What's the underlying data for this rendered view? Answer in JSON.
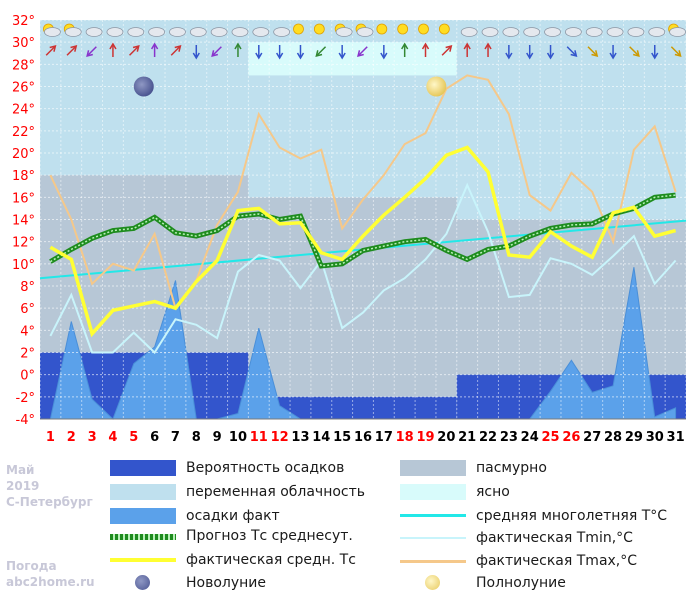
{
  "chart_data": {
    "type": "line",
    "month": "Май",
    "year": "2019",
    "city": "С-Петербург",
    "credit_line1": "Погода",
    "credit_line2": "abc2home.ru",
    "y_ticks": [
      "32°",
      "30°",
      "28°",
      "26°",
      "24°",
      "22°",
      "20°",
      "18°",
      "16°",
      "14°",
      "12°",
      "10°",
      "8°",
      "6°",
      "4°",
      "2°",
      "0°",
      "-2°",
      "-4°"
    ],
    "ylim": [
      -4,
      32
    ],
    "x": [
      1,
      2,
      3,
      4,
      5,
      6,
      7,
      8,
      9,
      10,
      11,
      12,
      13,
      14,
      15,
      16,
      17,
      18,
      19,
      20,
      21,
      22,
      23,
      24,
      25,
      26,
      27,
      28,
      29,
      30,
      31
    ],
    "x_labels": [
      "1",
      "2",
      "3",
      "4",
      "5",
      "6",
      "7",
      "8",
      "9",
      "10",
      "11",
      "12",
      "13",
      "14",
      "15",
      "16",
      "17",
      "18",
      "19",
      "20",
      "21",
      "22",
      "23",
      "24",
      "25",
      "26",
      "27",
      "28",
      "29",
      "30",
      "31"
    ],
    "weekend_days": [
      1,
      2,
      3,
      4,
      5,
      11,
      12,
      18,
      19,
      25,
      26
    ],
    "colors": {
      "weekend": "#ff0000",
      "weekday": "#000000",
      "precip_prob": "#3355cc",
      "variable_cloud": "#bfe0ee",
      "overcast": "#b7c7d6",
      "clear": "#d8fbfb",
      "precip_fact": "#5ba1ea",
      "forecast": "#1e8c1e",
      "fact_mean": "#ffff33",
      "norm": "#22e8e8",
      "tmin": "#c8f4fb",
      "tmax": "#f5c88a"
    },
    "cloud_segments": [
      {
        "from": 0.5,
        "to": 10.5,
        "type": "variable",
        "top": 30
      },
      {
        "from": 10.5,
        "to": 20.5,
        "type": "clear",
        "top": 30
      },
      {
        "from": 10.5,
        "to": 20.5,
        "type": "variable",
        "top": 27
      },
      {
        "from": 20.5,
        "to": 31.5,
        "type": "variable",
        "top": 30
      },
      {
        "from": 0.5,
        "to": 10.5,
        "type": "overcast",
        "top": 18
      },
      {
        "from": 10.5,
        "to": 20.5,
        "type": "overcast",
        "top": 16
      },
      {
        "from": 20.5,
        "to": 31.5,
        "type": "overcast",
        "top": 14
      }
    ],
    "precip_prob_blocks": [
      {
        "from": 0.5,
        "to": 10.5,
        "top": 2
      },
      {
        "from": 10.5,
        "to": 20.5,
        "top": -2
      },
      {
        "from": 20.5,
        "to": 31.5,
        "top": 0
      }
    ],
    "precip_fact": [
      -4,
      4.8,
      -2.2,
      -4,
      1,
      2.5,
      8.5,
      -4,
      -4,
      -3.5,
      4.2,
      -2.8,
      -4,
      -4,
      -4,
      -4,
      -4,
      -4,
      -4,
      -4,
      -4,
      -4,
      -4,
      -4,
      -1.5,
      1.3,
      -1.6,
      -1,
      9.7,
      -3.8,
      -3
    ],
    "forecast_mean": [
      10.2,
      11.3,
      12.3,
      13,
      13.2,
      14.2,
      12.8,
      12.5,
      13,
      14.3,
      14.5,
      14,
      14.3,
      9.8,
      10,
      11.2,
      11.6,
      12,
      12.2,
      11.2,
      10.4,
      11.3,
      11.6,
      12.5,
      13.2,
      13.5,
      13.6,
      14.5,
      15,
      16,
      16.2
    ],
    "fact_mean": [
      11.5,
      10.4,
      3.7,
      5.8,
      6.2,
      6.6,
      6,
      8.4,
      10.3,
      14.8,
      15,
      13.6,
      13.7,
      11,
      10.4,
      12.5,
      14.4,
      16,
      17.7,
      19.8,
      20.5,
      18.3,
      10.8,
      10.6,
      12.9,
      11.6,
      10.6,
      14.6,
      15.1,
      12.5,
      13
    ],
    "tmin": [
      3.5,
      7.2,
      2,
      2,
      3.8,
      2,
      5,
      4.5,
      3.3,
      9.3,
      10.8,
      10.3,
      7.8,
      10.3,
      4.2,
      5.6,
      7.6,
      8.7,
      10.4,
      12.7,
      17.1,
      12.9,
      7,
      7.2,
      10.5,
      10,
      9,
      10.7,
      12.5,
      8.2,
      10.3
    ],
    "tmax": [
      18,
      14,
      8.2,
      10,
      9.4,
      12.7,
      6,
      8.5,
      13.5,
      16.5,
      23.5,
      20.5,
      19.5,
      20.3,
      13.2,
      15.8,
      18,
      20.8,
      21.8,
      25.8,
      27,
      26.6,
      23.5,
      16.2,
      14.8,
      18.2,
      16.5,
      12,
      20.3,
      22.4,
      16.5
    ],
    "norm_line": {
      "start": 8.7,
      "end": 13.9
    },
    "new_moon_day": 5,
    "full_moon_day": 20,
    "legend": {
      "precip_prob": "Вероятность осадков",
      "variable_cloud": "переменная облачность",
      "precip_fact": "осадки факт",
      "forecast": "Прогноз Тс среднесут.",
      "fact_mean": "фактическая средн. Тс",
      "new_moon": "Новолуние",
      "overcast": "пасмурно",
      "clear": "ясно",
      "norm": "средняя многолетняя Т°С",
      "tmin": "фактическая Tmin,°C",
      "tmax": "фактическая Tmax,°C",
      "full_moon": "Полнолуние"
    },
    "weather_icons": [
      "sun-cloud-icon",
      "sun-cloud-icon",
      "cloud-icon",
      "cloud-icon",
      "cloud-icon",
      "cloud-icon",
      "cloud-icon",
      "cloud-icon",
      "cloud-icon",
      "cloud-icon",
      "cloud-icon",
      "cloud-icon",
      "sun-icon",
      "sun-icon",
      "sun-cloud-icon",
      "sun-cloud-icon",
      "sun-icon",
      "sun-icon",
      "sun-icon",
      "sun-icon",
      "cloud-icon",
      "cloud-icon",
      "cloud-icon",
      "cloud-icon",
      "cloud-icon",
      "cloud-icon",
      "cloud-icon",
      "cloud-icon",
      "cloud-icon",
      "cloud-icon",
      "sun-cloud-icon"
    ],
    "wind_colors": [
      "#cc3333",
      "#cc3333",
      "#8833cc",
      "#cc3333",
      "#cc3333",
      "#8833cc",
      "#cc3333",
      "#3355cc",
      "#8833cc",
      "#338833",
      "#3355cc",
      "#3355cc",
      "#3355cc",
      "#338833",
      "#3355cc",
      "#8833cc",
      "#3355cc",
      "#338833",
      "#cc3333",
      "#cc3333",
      "#cc3333",
      "#cc3333",
      "#3355cc",
      "#3355cc",
      "#3355cc",
      "#3355cc",
      "#cc9900",
      "#3355cc",
      "#cc9900",
      "#3355cc",
      "#cc9900"
    ],
    "wind_rot": [
      45,
      45,
      225,
      0,
      45,
      0,
      45,
      180,
      225,
      0,
      180,
      180,
      180,
      225,
      180,
      225,
      180,
      0,
      0,
      45,
      0,
      0,
      180,
      180,
      180,
      135,
      135,
      180,
      135,
      180,
      135
    ]
  }
}
